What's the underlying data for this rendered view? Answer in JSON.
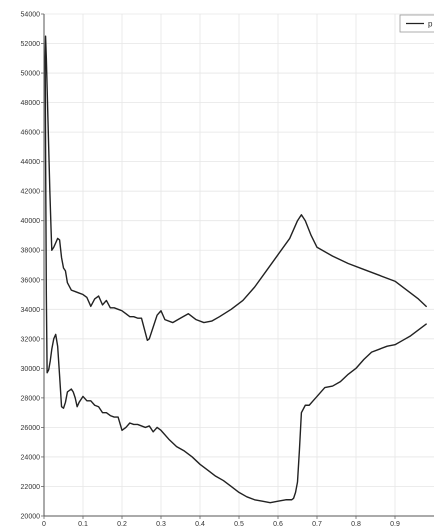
{
  "chart_data": {
    "type": "line",
    "title": "",
    "xlabel": "",
    "ylabel": "",
    "xlim": [
      0,
      1
    ],
    "ylim": [
      20000,
      54000
    ],
    "x_ticks": [
      0,
      0.1,
      0.2,
      0.3,
      0.4,
      0.5,
      0.6,
      0.7,
      0.8,
      0.9
    ],
    "x_tick_labels": [
      "0",
      "0.1",
      "0.2",
      "0.3",
      "0.4",
      "0.5",
      "0.6",
      "0.7",
      "0.8",
      "0.9"
    ],
    "y_ticks": [
      20000,
      22000,
      24000,
      26000,
      28000,
      30000,
      32000,
      34000,
      36000,
      38000,
      40000,
      42000,
      44000,
      46000,
      48000,
      50000,
      52000,
      54000
    ],
    "y_tick_labels": [
      "20000",
      "22000",
      "24000",
      "26000",
      "28000",
      "30000",
      "32000",
      "34000",
      "36000",
      "38000",
      "40000",
      "42000",
      "44000",
      "46000",
      "48000",
      "50000",
      "52000",
      "54000"
    ],
    "grid": true,
    "legend_position": "top-right",
    "series": [
      {
        "name": "p",
        "color": "#222222",
        "x": [
          0.98,
          0.96,
          0.93,
          0.9,
          0.86,
          0.82,
          0.78,
          0.74,
          0.7,
          0.685,
          0.67,
          0.66,
          0.65,
          0.63,
          0.6,
          0.57,
          0.54,
          0.51,
          0.48,
          0.45,
          0.43,
          0.41,
          0.39,
          0.37,
          0.35,
          0.33,
          0.31,
          0.3,
          0.29,
          0.28,
          0.27,
          0.265,
          0.26,
          0.25,
          0.24,
          0.23,
          0.22,
          0.21,
          0.2,
          0.19,
          0.18,
          0.17,
          0.16,
          0.15,
          0.14,
          0.13,
          0.12,
          0.11,
          0.1,
          0.09,
          0.08,
          0.07,
          0.06,
          0.055,
          0.05,
          0.045,
          0.04,
          0.035,
          0.03,
          0.025,
          0.02,
          0.018,
          0.015,
          0.012,
          0.01,
          0.008,
          0.006,
          0.004,
          0.003,
          0.004,
          0.006,
          0.008,
          0.012,
          0.016,
          0.02,
          0.025,
          0.03,
          0.035,
          0.04,
          0.045,
          0.05,
          0.055,
          0.06,
          0.065,
          0.07,
          0.075,
          0.08,
          0.085,
          0.09,
          0.095,
          0.1,
          0.11,
          0.12,
          0.13,
          0.14,
          0.15,
          0.16,
          0.17,
          0.18,
          0.19,
          0.2,
          0.21,
          0.22,
          0.23,
          0.24,
          0.25,
          0.26,
          0.27,
          0.28,
          0.29,
          0.3,
          0.32,
          0.34,
          0.36,
          0.38,
          0.4,
          0.42,
          0.44,
          0.46,
          0.48,
          0.5,
          0.52,
          0.54,
          0.56,
          0.58,
          0.6,
          0.62,
          0.635,
          0.64,
          0.645,
          0.65,
          0.655,
          0.66,
          0.67,
          0.68,
          0.69,
          0.7,
          0.72,
          0.74,
          0.76,
          0.78,
          0.8,
          0.82,
          0.84,
          0.86,
          0.88,
          0.9,
          0.92,
          0.94,
          0.96,
          0.98
        ],
        "y": [
          34200,
          34700,
          35300,
          35900,
          36300,
          36700,
          37100,
          37600,
          38200,
          39000,
          40000,
          40400,
          40000,
          38800,
          37700,
          36600,
          35500,
          34600,
          34000,
          33500,
          33200,
          33100,
          33300,
          33700,
          33400,
          33100,
          33300,
          33900,
          33600,
          32800,
          32000,
          31900,
          32400,
          33400,
          33400,
          33500,
          33500,
          33700,
          33900,
          34000,
          34100,
          34100,
          34600,
          34300,
          34900,
          34700,
          34200,
          34800,
          35000,
          35100,
          35200,
          35300,
          35800,
          36600,
          36800,
          37500,
          38700,
          38800,
          38500,
          38200,
          38000,
          39500,
          42000,
          45000,
          47000,
          49000,
          51000,
          52500,
          51000,
          45000,
          35000,
          29700,
          29900,
          30500,
          31300,
          32000,
          32300,
          31500,
          29500,
          27400,
          27300,
          27700,
          28400,
          28500,
          28600,
          28400,
          28000,
          27400,
          27700,
          27900,
          28100,
          27800,
          27800,
          27500,
          27400,
          27000,
          27000,
          26800,
          26700,
          26700,
          25800,
          26000,
          26300,
          26200,
          26200,
          26100,
          26000,
          26100,
          25700,
          26000,
          25800,
          25200,
          24700,
          24400,
          24000,
          23500,
          23100,
          22700,
          22400,
          22000,
          21600,
          21300,
          21100,
          21000,
          20900,
          21000,
          21100,
          21100,
          21200,
          21600,
          22300,
          24500,
          27000,
          27500,
          27500,
          27800,
          28100,
          28700,
          28800,
          29100,
          29600,
          30000,
          30600,
          31100,
          31300,
          31500,
          31600,
          31900,
          32200,
          32600,
          33000
        ]
      }
    ]
  }
}
